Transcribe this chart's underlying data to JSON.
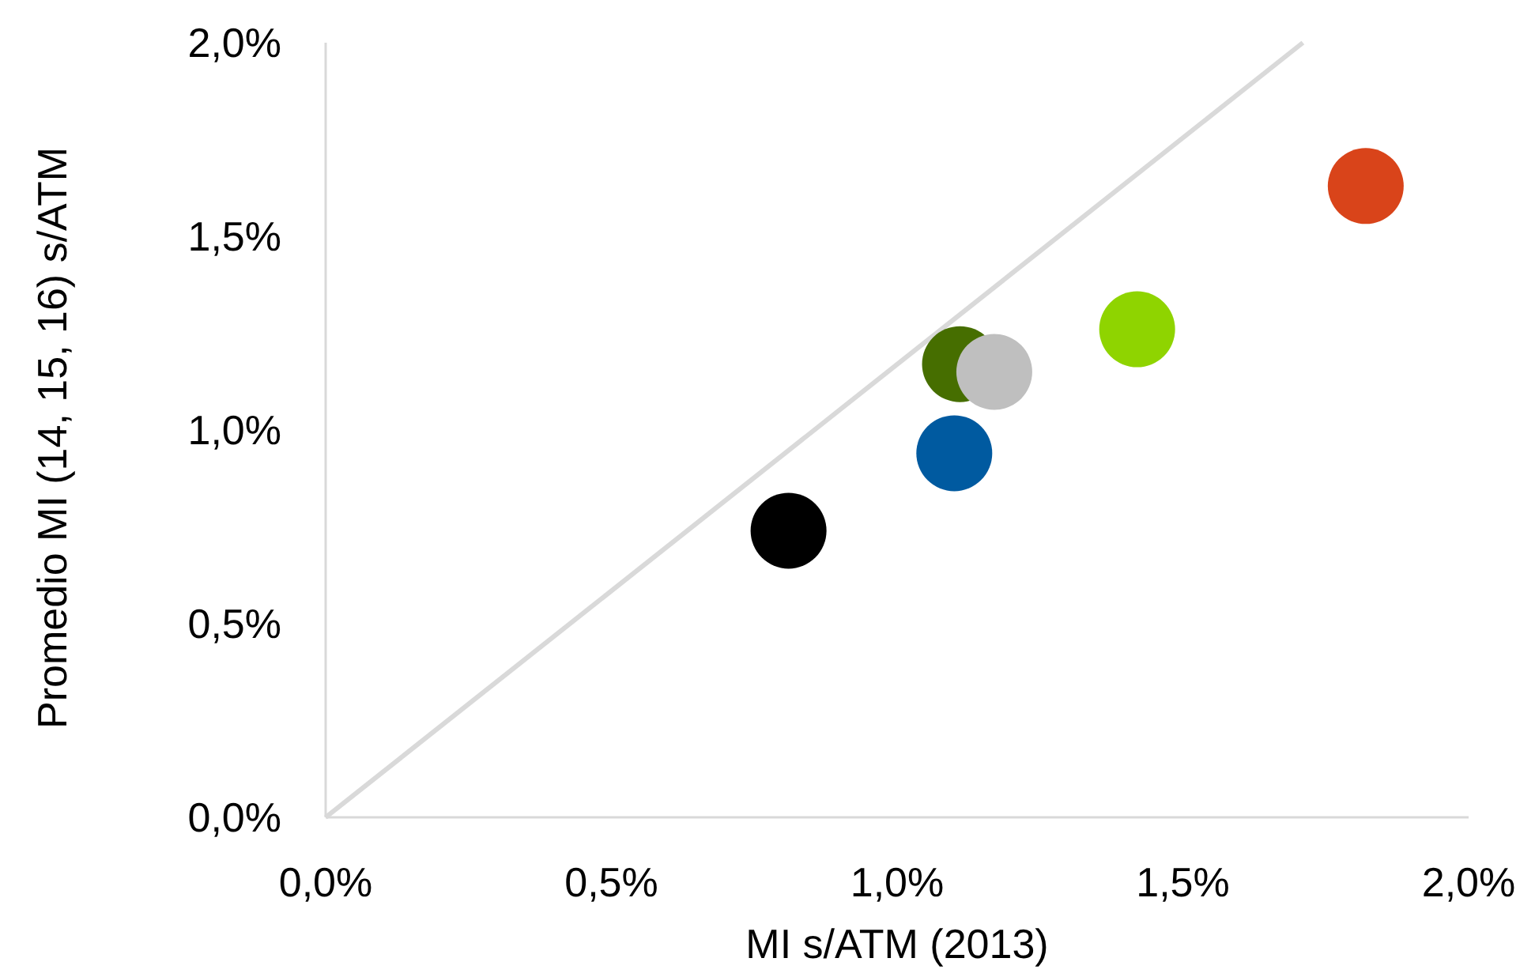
{
  "chart_data": {
    "type": "scatter",
    "xlabel": "MI s/ATM (2013)",
    "ylabel": "Promedio MI (14, 15, 16) s/ATM",
    "xlim": [
      0,
      2
    ],
    "ylim": [
      0,
      2
    ],
    "xticks": [
      {
        "value": 0,
        "label": "0,0%"
      },
      {
        "value": 0.5,
        "label": "0,5%"
      },
      {
        "value": 1,
        "label": "1,0%"
      },
      {
        "value": 1.5,
        "label": "1,5%"
      },
      {
        "value": 2,
        "label": "2,0%"
      }
    ],
    "yticks": [
      {
        "value": 0,
        "label": "0,0%"
      },
      {
        "value": 0.5,
        "label": "0,5%"
      },
      {
        "value": 1,
        "label": "1,0%"
      },
      {
        "value": 1.5,
        "label": "1,5%"
      },
      {
        "value": 2,
        "label": "2,0%"
      }
    ],
    "grid": false,
    "series": [
      {
        "type": "line",
        "color": "#d9d9d9",
        "x": [
          0,
          1.71
        ],
        "values": [
          0,
          2.0
        ]
      },
      {
        "marker": "circle",
        "x": [
          0.81,
          1.1,
          1.11,
          1.17,
          1.42,
          1.82
        ],
        "values": [
          0.74,
          0.94,
          1.17,
          1.15,
          1.26,
          1.63
        ],
        "colors": [
          "#000000",
          "#005aa0",
          "#466e00",
          "#bfbfbf",
          "#8fd400",
          "#d9441a"
        ]
      }
    ]
  }
}
